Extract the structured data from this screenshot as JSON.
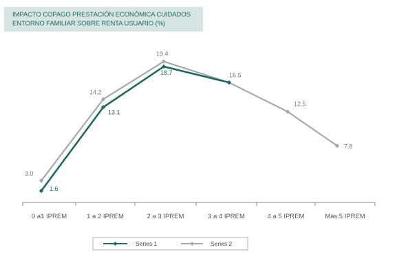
{
  "title_lines": [
    "IMPACTO COPAGO PRESTACIÓN ECONÓMICA CUIDADOS",
    "ENTORNO FAMILIAR SOBRE RENTA USUARIO (%)"
  ],
  "colors": {
    "series1": "#1c6b63",
    "series2": "#a8a8a8",
    "title_bg": "#d6e4e3",
    "title_text": "#1c6b63",
    "axis": "#888888"
  },
  "chart_data": {
    "type": "line",
    "title": "IMPACTO COPAGO PRESTACIÓN ECONÓMICA CUIDADOS ENTORNO FAMILIAR SOBRE RENTA USUARIO (%)",
    "categories": [
      "0 a1 IPREM",
      "1 a 2 IPREM",
      "2 a 3 IPREM",
      "3 a 4 IPREM",
      "4 a 5 IPREM",
      "Más 5 IPREM"
    ],
    "series": [
      {
        "name": "Series 1",
        "values": [
          1.6,
          13.1,
          18.7,
          16.5,
          null,
          null
        ],
        "labels": [
          "1.6",
          "13.1",
          "18.7",
          null,
          null,
          null
        ]
      },
      {
        "name": "Series 2",
        "values": [
          3.0,
          14.2,
          19.4,
          16.5,
          12.5,
          7.8
        ],
        "labels": [
          "3.0",
          "14.2",
          "19.4",
          "16.5",
          "12.5",
          "7.8"
        ]
      }
    ],
    "ylim": [
      0,
      22
    ],
    "grid": false,
    "legend": "bottom"
  }
}
